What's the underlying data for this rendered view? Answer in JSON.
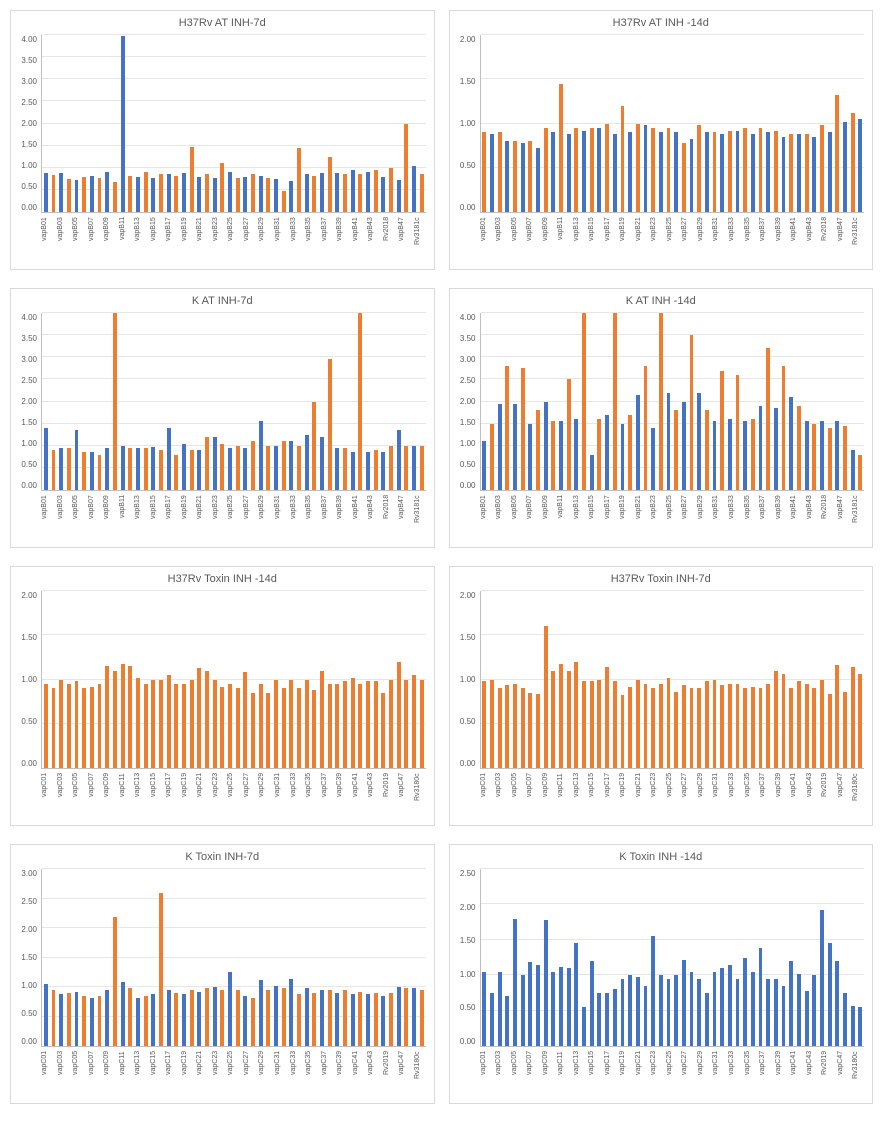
{
  "colors": {
    "blue": "#4472c4",
    "orange": "#ed7d31",
    "grid": "#e6e6e6",
    "border": "#d9d9d9",
    "text": "#595959"
  },
  "x_labels_B": [
    "vapB01",
    "vapB03",
    "vapB05",
    "vapB07",
    "vapB09",
    "vapB11",
    "vapB13",
    "vapB15",
    "vapB17",
    "vapB19",
    "vapB21",
    "vapB23",
    "vapB25",
    "vapB27",
    "vapB29",
    "vapB31",
    "vapB33",
    "vapB35",
    "vapB37",
    "vapB39",
    "vapB41",
    "vapB43",
    "Rv2018",
    "vapB47",
    "Rv3181c"
  ],
  "x_labels_C": [
    "vapC01",
    "vapC03",
    "vapC05",
    "vapC07",
    "vapC09",
    "vapC11",
    "vapC13",
    "vapC15",
    "vapC17",
    "vapC19",
    "vapC21",
    "vapC23",
    "vapC25",
    "vapC27",
    "vapC29",
    "vapC31",
    "vapC33",
    "vapC35",
    "vapC37",
    "vapC39",
    "vapC41",
    "vapC43",
    "Rv2019",
    "vapC47",
    "Rv3180c"
  ],
  "charts": [
    {
      "title": "H37Rv AT  INH-7d",
      "type": "bar",
      "x_labels_key": "x_labels_B",
      "ylim": [
        0,
        4.0
      ],
      "ytick_step": 0.5,
      "series": [
        {
          "colorIdx": 0,
          "values": [
            0.88,
            0.88,
            0.72,
            0.82,
            0.9,
            3.98,
            0.8,
            0.78,
            0.85,
            0.88,
            0.8,
            0.78,
            0.9,
            0.8,
            0.82,
            0.75,
            0.7,
            0.85,
            0.88,
            0.88,
            0.95,
            0.9,
            0.8,
            0.72,
            1.05
          ]
        },
        {
          "colorIdx": 1,
          "values": [
            0.83,
            0.75,
            0.8,
            0.78,
            0.68,
            0.82,
            0.9,
            0.85,
            0.82,
            1.48,
            0.85,
            1.1,
            0.78,
            0.85,
            0.78,
            0.48,
            1.45,
            0.82,
            1.25,
            0.85,
            0.85,
            0.95,
            1.0,
            2.0,
            0.85
          ]
        }
      ]
    },
    {
      "title": "H37Rv AT  INH -14d",
      "type": "bar",
      "x_labels_key": "x_labels_B",
      "ylim": [
        0,
        2.0
      ],
      "ytick_step": 0.5,
      "series": [
        {
          "colorIdx": 1,
          "values": [
            0.9,
            0.9,
            0.8,
            0.8,
            0.95,
            1.45,
            0.95,
            0.95,
            1.0,
            1.2,
            1.0,
            0.95,
            0.95,
            0.78,
            0.98,
            0.9,
            0.92,
            0.95,
            0.95,
            0.92,
            0.88,
            0.88,
            0.98,
            1.32,
            1.12
          ]
        },
        {
          "colorIdx": 0,
          "values": [
            0.88,
            0.8,
            0.78,
            0.72,
            0.9,
            0.88,
            0.92,
            0.95,
            0.88,
            0.9,
            0.98,
            0.9,
            0.9,
            0.82,
            0.9,
            0.88,
            0.92,
            0.88,
            0.9,
            0.85,
            0.88,
            0.85,
            0.9,
            1.02,
            1.05
          ]
        }
      ]
    },
    {
      "title": "K  AT  INH-7d",
      "type": "bar",
      "x_labels_key": "x_labels_B",
      "ylim": [
        0,
        4.0
      ],
      "ytick_step": 0.5,
      "series": [
        {
          "colorIdx": 0,
          "values": [
            1.4,
            0.95,
            1.35,
            0.85,
            0.95,
            1.0,
            0.95,
            0.98,
            1.4,
            1.05,
            0.9,
            1.2,
            0.95,
            0.95,
            1.55,
            1.0,
            1.1,
            1.25,
            1.2,
            0.95,
            0.85,
            0.85,
            0.85,
            1.35,
            1.0
          ]
        },
        {
          "colorIdx": 1,
          "values": [
            0.9,
            0.95,
            0.85,
            0.8,
            4.0,
            0.95,
            0.95,
            0.9,
            0.8,
            0.9,
            1.2,
            1.05,
            1.0,
            1.1,
            1.0,
            1.1,
            1.0,
            2.0,
            2.95,
            0.95,
            4.0,
            0.9,
            1.0,
            1.0,
            1.0
          ]
        }
      ]
    },
    {
      "title": "K  AT  INH -14d",
      "type": "bar",
      "x_labels_key": "x_labels_B",
      "ylim": [
        0,
        4.0
      ],
      "ytick_step": 0.5,
      "series": [
        {
          "colorIdx": 0,
          "values": [
            1.1,
            1.95,
            1.95,
            1.5,
            2.0,
            1.55,
            1.6,
            0.8,
            1.7,
            1.5,
            2.15,
            1.4,
            2.2,
            2.0,
            2.2,
            1.55,
            1.6,
            1.55,
            1.9,
            1.85,
            2.1,
            1.55,
            1.55,
            1.55,
            0.9
          ]
        },
        {
          "colorIdx": 1,
          "values": [
            1.5,
            2.8,
            2.75,
            1.8,
            1.55,
            2.5,
            4.0,
            1.6,
            4.0,
            1.7,
            2.8,
            4.0,
            1.8,
            3.5,
            1.8,
            2.7,
            2.6,
            1.6,
            3.2,
            2.8,
            1.9,
            1.5,
            1.4,
            1.45,
            0.8
          ]
        }
      ]
    },
    {
      "title": "H37Rv Toxin  INH -14d",
      "type": "bar",
      "x_labels_key": "x_labels_C",
      "ylim": [
        0,
        2.0
      ],
      "ytick_step": 0.5,
      "series": [
        {
          "colorIdx": 1,
          "values": [
            0.95,
            1.0,
            0.98,
            0.92,
            1.15,
            1.18,
            1.02,
            1.0,
            1.05,
            0.95,
            1.13,
            1.0,
            0.95,
            1.08,
            0.95,
            1.0,
            1.0,
            1.0,
            1.1,
            0.95,
            1.02,
            0.98,
            0.85,
            1.2,
            1.05
          ]
        },
        {
          "colorIdx": 1,
          "values": [
            0.9,
            0.95,
            0.9,
            0.95,
            1.1,
            1.15,
            0.95,
            1.0,
            0.95,
            1.0,
            1.1,
            0.92,
            0.9,
            0.85,
            0.85,
            0.9,
            0.9,
            0.88,
            0.95,
            0.98,
            0.95,
            0.98,
            1.0,
            1.0,
            1.0
          ]
        }
      ]
    },
    {
      "title": "H37Rv Toxin  INH-7d",
      "type": "bar",
      "x_labels_key": "x_labels_C",
      "ylim": [
        0,
        2.0
      ],
      "ytick_step": 0.5,
      "series": [
        {
          "colorIdx": 1,
          "values": [
            0.98,
            0.9,
            0.95,
            0.85,
            1.6,
            1.18,
            1.2,
            0.98,
            1.14,
            0.82,
            1.0,
            0.9,
            1.02,
            0.94,
            0.9,
            1.0,
            0.95,
            0.9,
            0.9,
            1.1,
            0.9,
            0.95,
            1.0,
            1.16,
            1.14
          ]
        },
        {
          "colorIdx": 1,
          "values": [
            1.0,
            0.94,
            0.9,
            0.84,
            1.1,
            1.1,
            0.98,
            1.0,
            0.98,
            0.92,
            0.95,
            0.95,
            0.86,
            0.9,
            0.98,
            0.94,
            0.95,
            0.92,
            0.95,
            1.06,
            0.98,
            0.9,
            0.84,
            0.86,
            1.06
          ]
        }
      ]
    },
    {
      "title": "K   Toxin  INH-7d",
      "type": "bar",
      "x_labels_key": "x_labels_C",
      "ylim": [
        0,
        3.0
      ],
      "ytick_step": 0.5,
      "series": [
        {
          "colorIdx": 0,
          "values": [
            1.05,
            0.88,
            0.92,
            0.82,
            0.95,
            1.08,
            0.82,
            0.88,
            0.95,
            0.88,
            0.92,
            1.0,
            1.25,
            0.85,
            1.12,
            1.02,
            1.13,
            0.98,
            0.95,
            0.9,
            0.88,
            0.88,
            0.85,
            1.0,
            0.98
          ]
        },
        {
          "colorIdx": 1,
          "values": [
            0.95,
            0.9,
            0.85,
            0.84,
            2.18,
            0.98,
            0.85,
            2.6,
            0.9,
            0.95,
            0.98,
            0.95,
            0.95,
            0.82,
            0.95,
            0.98,
            0.88,
            0.9,
            0.95,
            0.95,
            0.92,
            0.9,
            0.9,
            0.98,
            0.95
          ]
        }
      ]
    },
    {
      "title": "K   Toxin  INH -14d",
      "type": "bar",
      "x_labels_key": "x_labels_C",
      "ylim": [
        0,
        2.5
      ],
      "ytick_step": 0.5,
      "series": [
        {
          "colorIdx": 0,
          "values": [
            1.05,
            1.05,
            1.8,
            1.18,
            1.78,
            1.12,
            1.45,
            1.2,
            0.75,
            0.95,
            0.98,
            1.55,
            0.95,
            1.22,
            0.95,
            1.05,
            1.15,
            1.25,
            1.38,
            0.95,
            1.2,
            0.78,
            1.92,
            1.2,
            0.56
          ]
        },
        {
          "colorIdx": 0,
          "values": [
            0.75,
            0.7,
            1.0,
            1.15,
            1.05,
            1.1,
            0.55,
            0.75,
            0.8,
            1.0,
            0.85,
            1.0,
            1.0,
            1.05,
            0.75,
            1.1,
            0.95,
            1.05,
            0.95,
            0.85,
            1.02,
            1.0,
            1.45,
            0.75,
            0.55
          ]
        }
      ]
    }
  ]
}
